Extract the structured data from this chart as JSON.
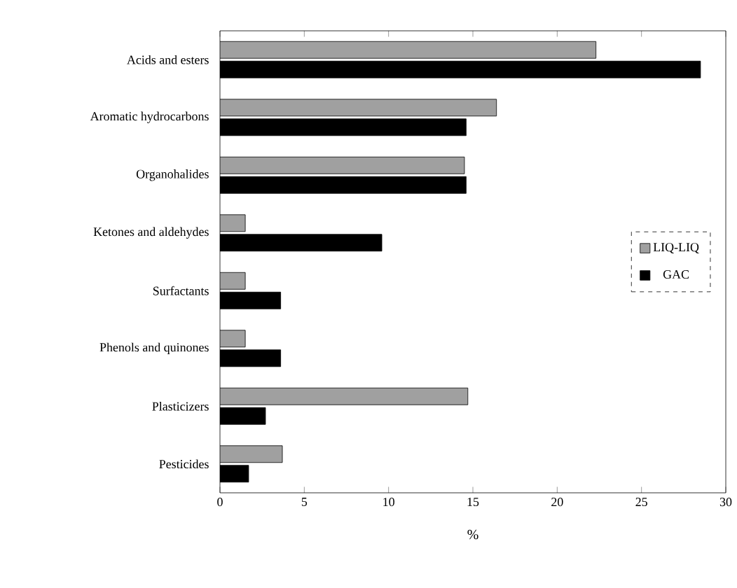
{
  "chart_data": {
    "type": "bar",
    "orientation": "horizontal",
    "xlabel": "%",
    "categories": [
      "Acids and esters",
      "Aromatic hydrocarbons",
      "Organohalides",
      "Ketones and aldehydes",
      "Surfactants",
      "Phenols and quinones",
      "Plasticizers",
      "Pesticides"
    ],
    "series": [
      {
        "name": "LIQ-LIQ",
        "color": "#a0a0a0",
        "values": [
          22.3,
          16.4,
          14.5,
          1.5,
          1.5,
          1.5,
          14.7,
          3.7
        ]
      },
      {
        "name": "GAC",
        "color": "#000000",
        "values": [
          28.5,
          14.6,
          14.6,
          9.6,
          3.6,
          3.6,
          2.7,
          1.7
        ]
      }
    ],
    "xlim": [
      0,
      30
    ],
    "xticks": [
      0,
      5,
      10,
      15,
      20,
      25,
      30
    ],
    "legend": "right",
    "grid": false
  }
}
